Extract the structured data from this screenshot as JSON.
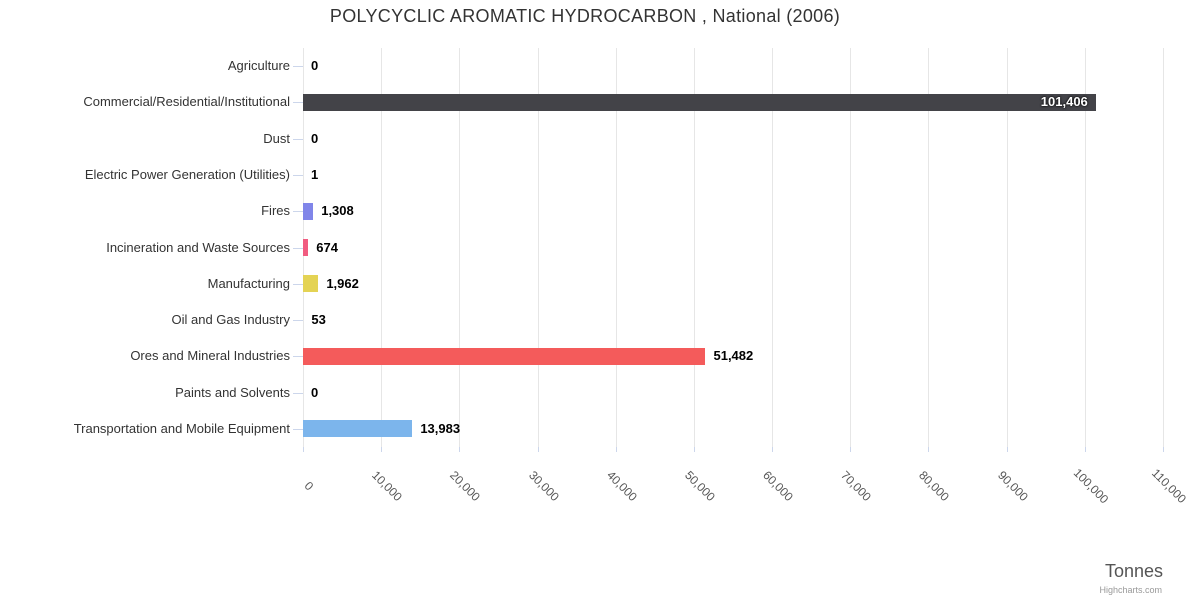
{
  "credit_label": "Highcharts.com",
  "chart_data": {
    "type": "bar",
    "orientation": "horizontal",
    "title": "POLYCYCLIC AROMATIC HYDROCARBON , National (2006)",
    "xlabel": "Tonnes",
    "ylabel": "",
    "categories": [
      "Agriculture",
      "Commercial/Residential/Institutional",
      "Dust",
      "Electric Power Generation (Utilities)",
      "Fires",
      "Incineration and Waste Sources",
      "Manufacturing",
      "Oil and Gas Industry",
      "Ores and Mineral Industries",
      "Paints and Solvents",
      "Transportation and Mobile Equipment"
    ],
    "values": [
      0,
      101406,
      0,
      1,
      1308,
      674,
      1962,
      53,
      51482,
      0,
      13983
    ],
    "value_labels": [
      "0",
      "101,406",
      "0",
      "1",
      "1,308",
      "674",
      "1,962",
      "53",
      "51,482",
      "0",
      "13,983"
    ],
    "bar_colors": [
      "#7cb5ec",
      "#434348",
      "#90ed7d",
      "#f7a35c",
      "#8085e9",
      "#f15c80",
      "#e4d354",
      "#2b908f",
      "#f45b5b",
      "#91e8e1",
      "#7cb5ec"
    ],
    "xlim": [
      0,
      110000
    ],
    "x_ticks": [
      0,
      10000,
      20000,
      30000,
      40000,
      50000,
      60000,
      70000,
      80000,
      90000,
      100000,
      110000
    ],
    "x_tick_labels": [
      "0",
      "10,000",
      "20,000",
      "30,000",
      "40,000",
      "50,000",
      "60,000",
      "70,000",
      "80,000",
      "90,000",
      "100,000",
      "110,000"
    ],
    "grid": true,
    "legend": false,
    "styles": {
      "grid_color": "#e6e6e6",
      "tick_color": "#ccd6eb",
      "category_label_color": "#333333",
      "axis_label_color": "#555555",
      "data_label_color": "#000000",
      "inside_label_color": "#ffffff",
      "title_color": "#333333",
      "credit_color": "#999999"
    }
  }
}
